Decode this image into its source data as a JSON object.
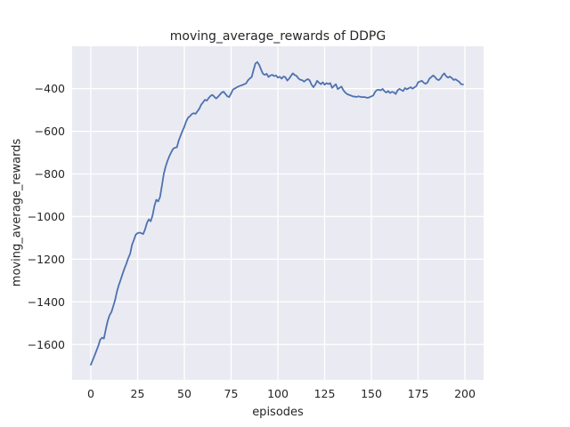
{
  "chart_data": {
    "type": "line",
    "title": "moving_average_rewards of DDPG",
    "xlabel": "episodes",
    "ylabel": "moving_average_rewards",
    "xlim": [
      -10,
      210
    ],
    "ylim": [
      -1766,
      -201
    ],
    "grid": true,
    "legend": false,
    "style": "seaborn-darkgrid",
    "xticks": [
      {
        "v": 0,
        "label": "0"
      },
      {
        "v": 25,
        "label": "25"
      },
      {
        "v": 50,
        "label": "50"
      },
      {
        "v": 75,
        "label": "75"
      },
      {
        "v": 100,
        "label": "100"
      },
      {
        "v": 125,
        "label": "125"
      },
      {
        "v": 150,
        "label": "150"
      },
      {
        "v": 175,
        "label": "175"
      },
      {
        "v": 200,
        "label": "200"
      }
    ],
    "yticks": [
      {
        "v": -400,
        "label": "−400"
      },
      {
        "v": -600,
        "label": "−600"
      },
      {
        "v": -800,
        "label": "−800"
      },
      {
        "v": -1000,
        "label": "−1000"
      },
      {
        "v": -1200,
        "label": "−1200"
      },
      {
        "v": -1400,
        "label": "−1400"
      },
      {
        "v": -1600,
        "label": "−1600"
      }
    ],
    "series": [
      {
        "name": "moving_average_rewards",
        "x_start": 0,
        "x_step": 1,
        "values": [
          -1695,
          -1673,
          -1652,
          -1629,
          -1606,
          -1578,
          -1568,
          -1572,
          -1529,
          -1490,
          -1463,
          -1448,
          -1420,
          -1390,
          -1350,
          -1320,
          -1295,
          -1268,
          -1243,
          -1221,
          -1195,
          -1175,
          -1133,
          -1110,
          -1085,
          -1078,
          -1075,
          -1078,
          -1082,
          -1060,
          -1030,
          -1013,
          -1022,
          -995,
          -950,
          -921,
          -929,
          -908,
          -855,
          -800,
          -765,
          -738,
          -716,
          -698,
          -682,
          -677,
          -675,
          -643,
          -620,
          -598,
          -578,
          -553,
          -536,
          -529,
          -519,
          -515,
          -518,
          -506,
          -494,
          -475,
          -464,
          -452,
          -456,
          -444,
          -434,
          -429,
          -438,
          -446,
          -438,
          -428,
          -418,
          -414,
          -425,
          -436,
          -439,
          -422,
          -404,
          -399,
          -394,
          -389,
          -386,
          -383,
          -379,
          -375,
          -361,
          -352,
          -345,
          -312,
          -282,
          -275,
          -288,
          -310,
          -330,
          -335,
          -330,
          -345,
          -338,
          -335,
          -341,
          -338,
          -348,
          -344,
          -353,
          -343,
          -346,
          -362,
          -353,
          -340,
          -328,
          -336,
          -340,
          -352,
          -358,
          -360,
          -367,
          -360,
          -355,
          -361,
          -381,
          -393,
          -381,
          -363,
          -372,
          -379,
          -370,
          -381,
          -374,
          -378,
          -374,
          -396,
          -387,
          -379,
          -402,
          -396,
          -390,
          -407,
          -418,
          -425,
          -429,
          -432,
          -436,
          -437,
          -439,
          -436,
          -438,
          -440,
          -439,
          -441,
          -443,
          -440,
          -436,
          -432,
          -415,
          -406,
          -405,
          -408,
          -401,
          -412,
          -418,
          -411,
          -420,
          -415,
          -417,
          -425,
          -408,
          -401,
          -406,
          -411,
          -397,
          -403,
          -398,
          -393,
          -400,
          -394,
          -388,
          -370,
          -366,
          -363,
          -372,
          -377,
          -371,
          -353,
          -346,
          -338,
          -345,
          -356,
          -360,
          -352,
          -337,
          -328,
          -342,
          -348,
          -343,
          -350,
          -359,
          -356,
          -362,
          -368,
          -379,
          -380
        ]
      }
    ],
    "colors": {
      "line": "#4C72B0",
      "plot_background": "#EAEAF2",
      "grid": "#FFFFFF",
      "text": "#262626",
      "figure_background": "#FFFFFF"
    }
  }
}
